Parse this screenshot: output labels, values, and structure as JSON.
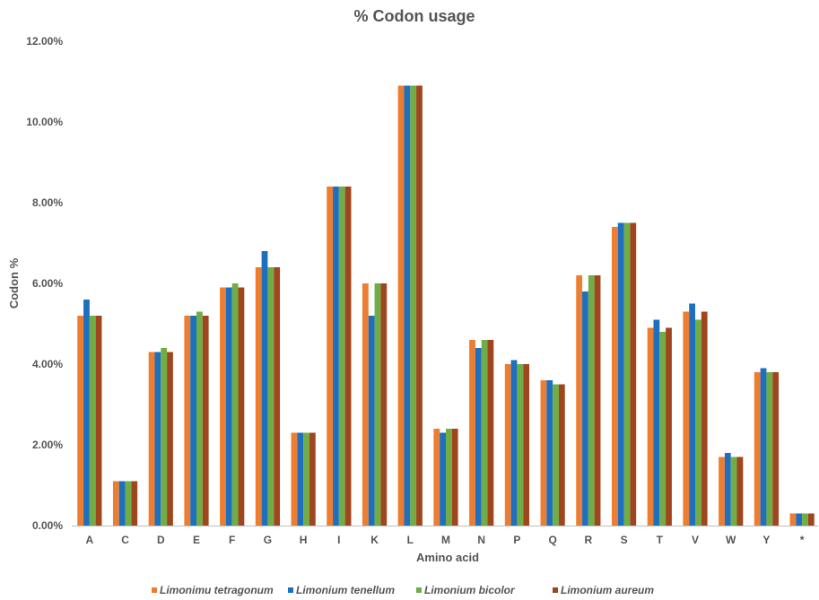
{
  "chart_data": {
    "type": "bar",
    "title": "% Codon usage",
    "xlabel": "Amino acid",
    "ylabel": "Codon %",
    "ylim": [
      0,
      12
    ],
    "y_ticks": [
      "0.00%",
      "2.00%",
      "4.00%",
      "6.00%",
      "8.00%",
      "10.00%",
      "12.00%"
    ],
    "grid": false,
    "legend_position": "bottom",
    "categories": [
      "A",
      "C",
      "D",
      "E",
      "F",
      "G",
      "H",
      "I",
      "K",
      "L",
      "M",
      "N",
      "P",
      "Q",
      "R",
      "S",
      "T",
      "V",
      "W",
      "Y",
      "*"
    ],
    "series": [
      {
        "name": "Limonimu tetragonum",
        "color": "#ED7D31",
        "values": [
          5.2,
          1.1,
          4.3,
          5.2,
          5.9,
          6.4,
          2.3,
          8.4,
          6.0,
          10.9,
          2.4,
          4.6,
          4.0,
          3.6,
          6.2,
          7.4,
          4.9,
          5.3,
          1.7,
          3.8,
          0.3
        ]
      },
      {
        "name": "Limonium tenellum",
        "color": "#1F6FBF",
        "values": [
          5.6,
          1.1,
          4.3,
          5.2,
          5.9,
          6.8,
          2.3,
          8.4,
          5.2,
          10.9,
          2.3,
          4.4,
          4.1,
          3.6,
          5.8,
          7.5,
          5.1,
          5.5,
          1.8,
          3.9,
          0.3
        ]
      },
      {
        "name": "Limonium bicolor",
        "color": "#70AD47",
        "values": [
          5.2,
          1.1,
          4.4,
          5.3,
          6.0,
          6.4,
          2.3,
          8.4,
          6.0,
          10.9,
          2.4,
          4.6,
          4.0,
          3.5,
          6.2,
          7.5,
          4.8,
          5.1,
          1.7,
          3.8,
          0.3
        ]
      },
      {
        "name": "Limonium aureum",
        "color": "#A0461E",
        "values": [
          5.2,
          1.1,
          4.3,
          5.2,
          5.9,
          6.4,
          2.3,
          8.4,
          6.0,
          10.9,
          2.4,
          4.6,
          4.0,
          3.5,
          6.2,
          7.5,
          4.9,
          5.3,
          1.7,
          3.8,
          0.3
        ]
      }
    ]
  }
}
